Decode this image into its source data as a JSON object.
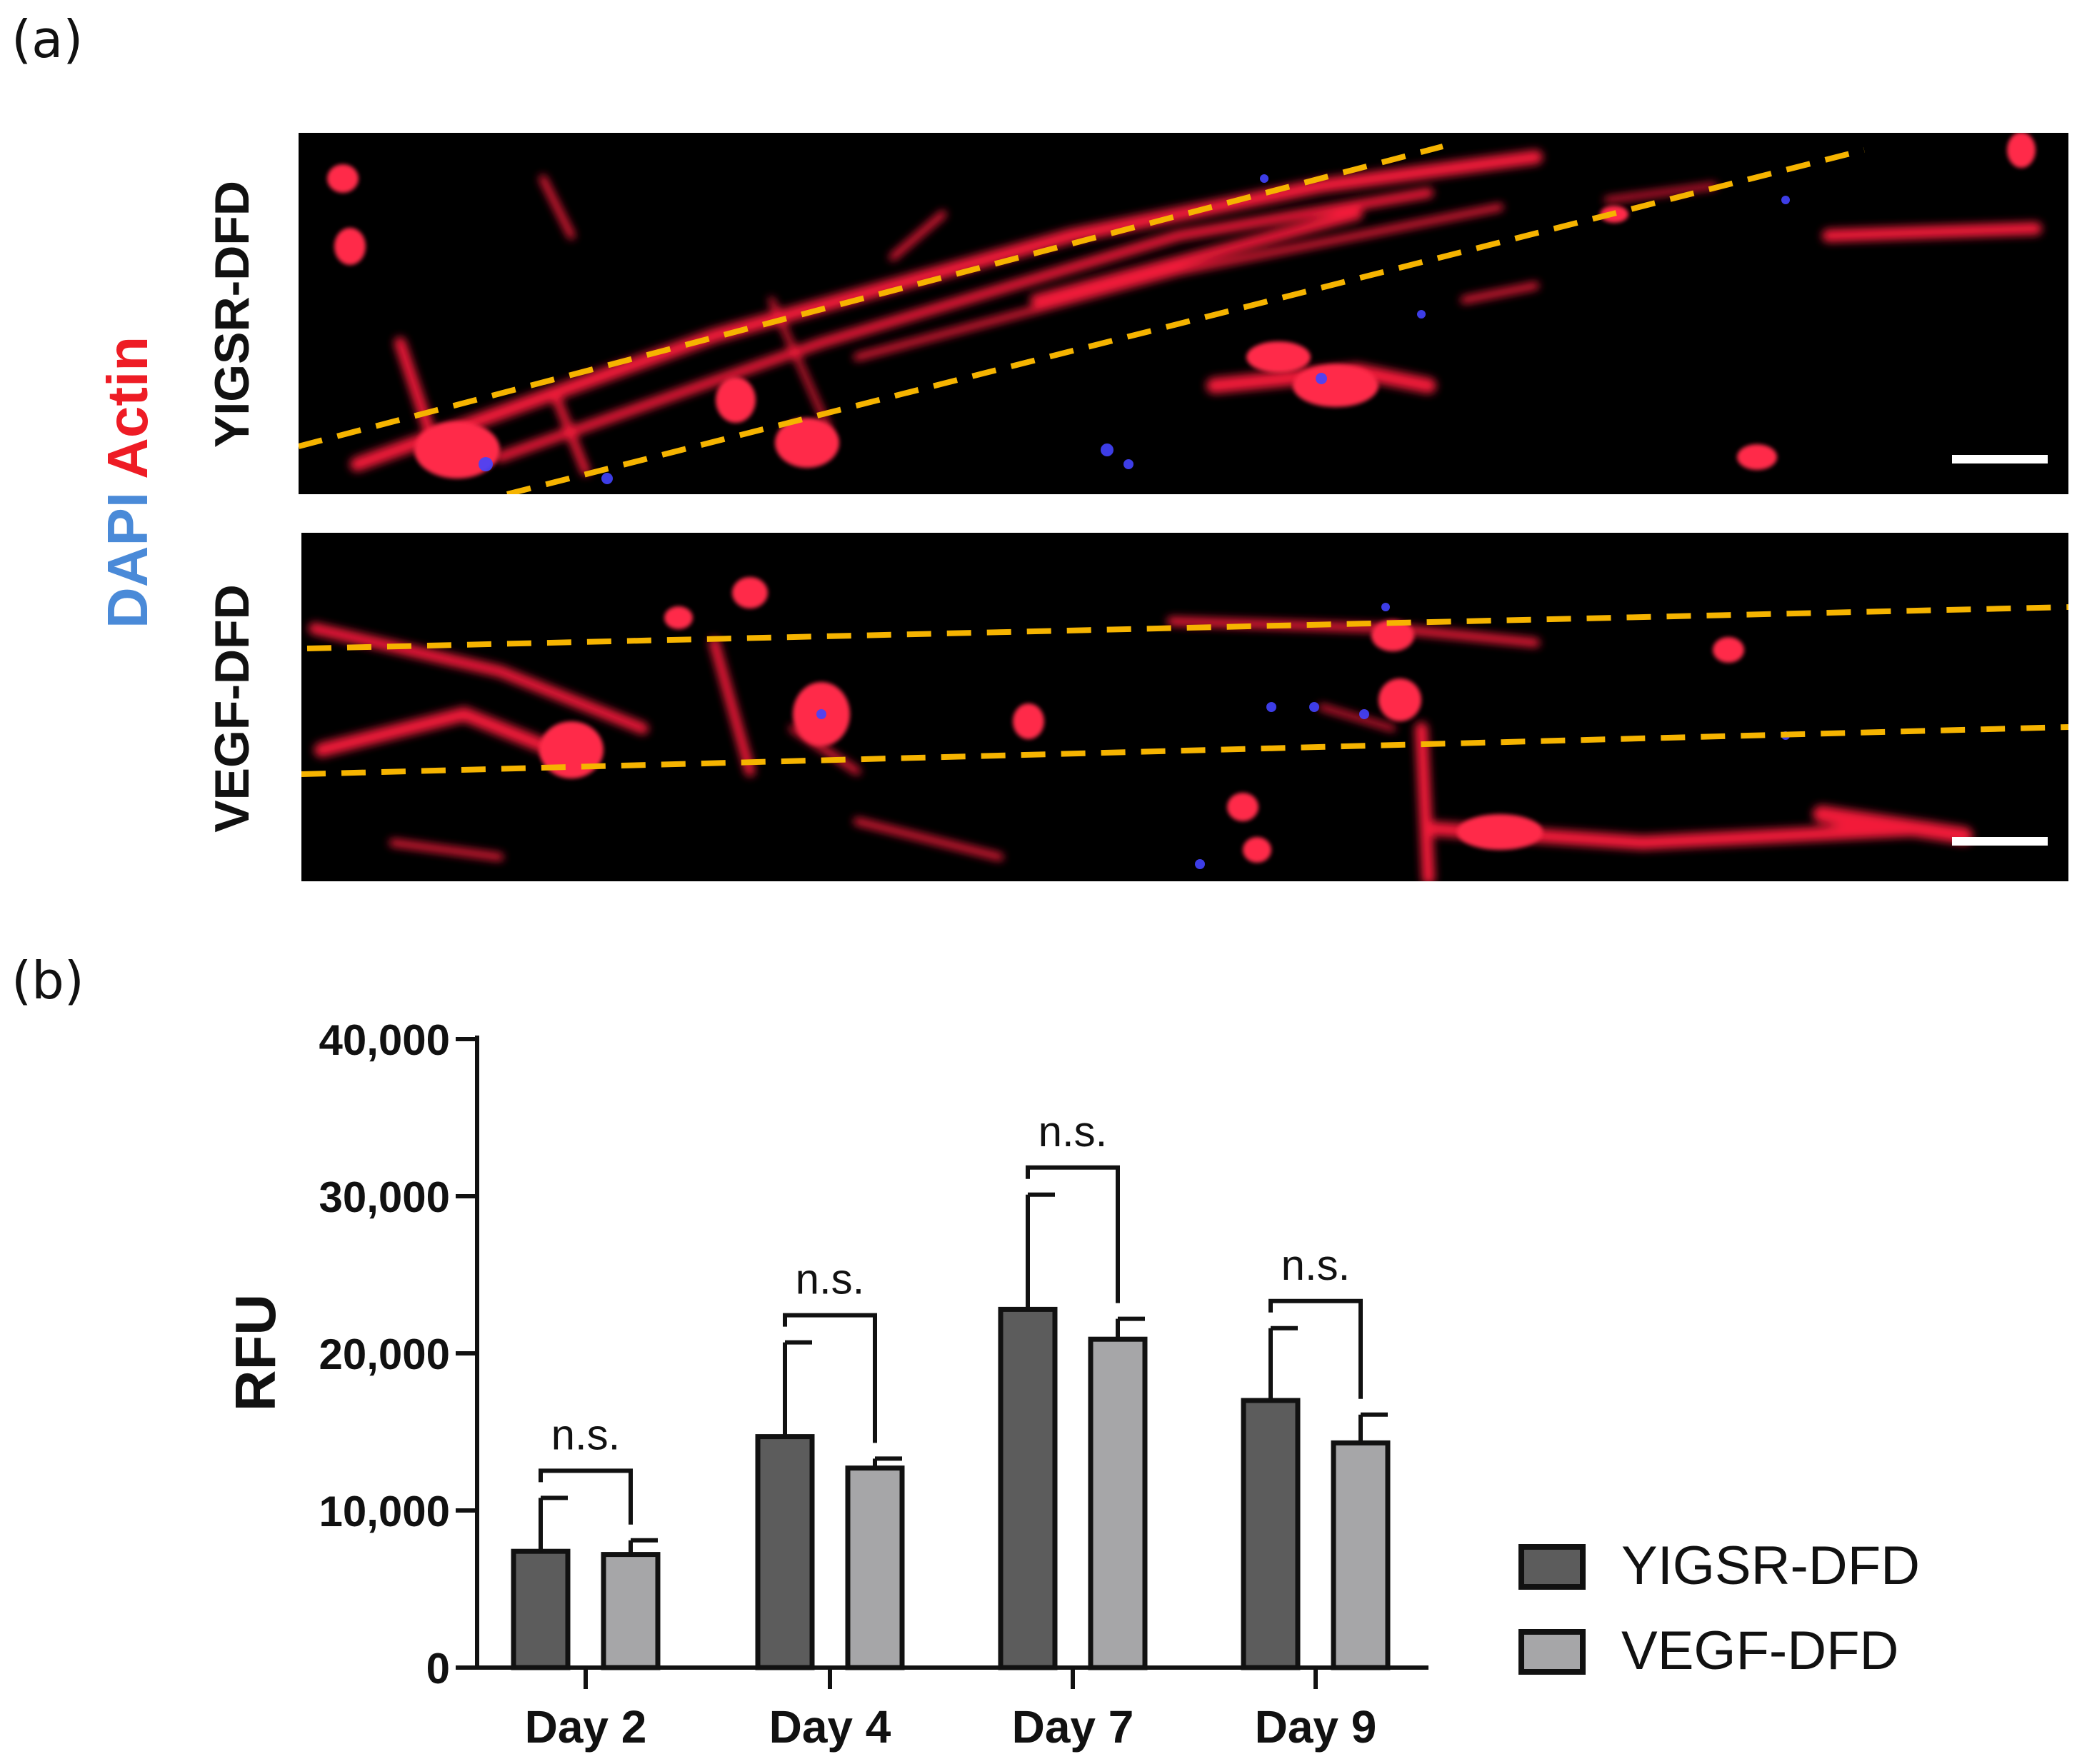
{
  "panel_a": {
    "label": "(a)",
    "stain_label_blue": "DAPI",
    "stain_label_red": "Actin",
    "stain_colors": {
      "blue": "#4a8ad8",
      "red": "#ee1c25"
    },
    "rows": [
      {
        "label": "YIGSR-DFD"
      },
      {
        "label": "VEGF-DFD"
      }
    ],
    "image_colors": {
      "background": "#000000",
      "actin": "#ff1f3c",
      "nuclei": "#3a3aff",
      "boundary": "#f6b400",
      "scale_bar": "#ffffff"
    }
  },
  "panel_b": {
    "label": "(b)"
  },
  "chart_data": {
    "type": "bar",
    "title": "",
    "xlabel": "",
    "ylabel": "RFU",
    "ylim": [
      0,
      40000
    ],
    "yticks": [
      "0",
      "10,000",
      "20,000",
      "30,000",
      "40,000"
    ],
    "ytick_values": [
      0,
      10000,
      20000,
      30000,
      40000
    ],
    "categories": [
      "Day 2",
      "Day 4",
      "Day 7",
      "Day 9"
    ],
    "series": [
      {
        "name": "YIGSR-DFD",
        "color": "#5c5c5c",
        "values": [
          7400,
          14700,
          22800,
          17000
        ],
        "error": [
          3400,
          6000,
          7300,
          4600
        ]
      },
      {
        "name": "VEGF-DFD",
        "color": "#a6a6a8",
        "values": [
          7200,
          12700,
          20900,
          14300
        ],
        "error": [
          900,
          600,
          1300,
          1800
        ]
      }
    ],
    "significance": [
      "n.s.",
      "n.s.",
      "n.s.",
      "n.s."
    ],
    "legend_position": "bottom-right",
    "grid": false
  }
}
